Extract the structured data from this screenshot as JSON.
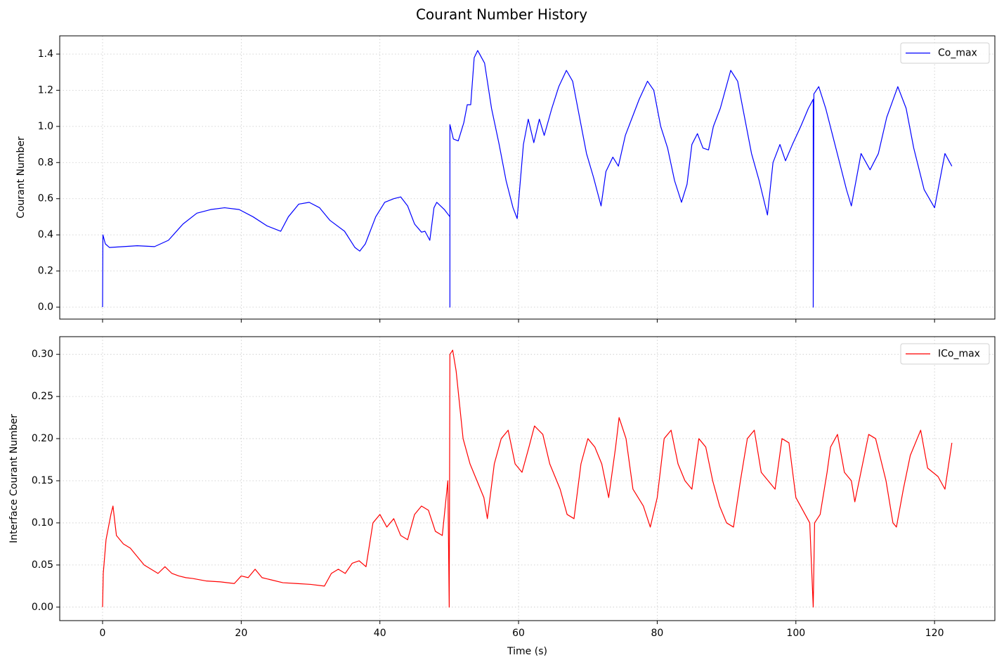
{
  "title": "Courant Number History",
  "chart_data": [
    {
      "type": "line",
      "ylabel": "Courant Number",
      "grid": true,
      "legend": "upper right",
      "xlim": [
        -6.18,
        128.7
      ],
      "ylim": [
        -0.066,
        1.501
      ],
      "xticks": [
        0,
        20,
        40,
        60,
        80,
        100,
        120
      ],
      "yticks": [
        {
          "value": 0,
          "label": "0.0"
        },
        0.2,
        0.4,
        0.6,
        0.8,
        {
          "value": 1,
          "label": "1.0"
        },
        1.2,
        1.4
      ],
      "series": [
        {
          "name": "Co_max",
          "color": "#0000ff",
          "x": [
            0,
            0.05,
            0.4,
            1,
            3,
            5,
            7.5,
            9.5,
            11.6,
            13.6,
            15.6,
            17.6,
            19.7,
            21.7,
            23.7,
            25.7,
            26.8,
            28.3,
            29.8,
            31.3,
            32.8,
            34.9,
            36.4,
            37.1,
            37.9,
            39.4,
            40.7,
            42,
            43,
            44,
            45,
            46,
            46.5,
            47.2,
            47.8,
            48.2,
            49.3,
            50.1,
            50.1,
            50.1,
            50.6,
            51.3,
            52.1,
            52.6,
            53.1,
            53.6,
            54.1,
            55.1,
            56.1,
            57.2,
            58.2,
            59.2,
            59.8,
            60.7,
            61.4,
            62.2,
            63,
            63.7,
            64.8,
            65.8,
            66.9,
            67.8,
            68.8,
            69.8,
            70.8,
            71.9,
            72.6,
            73.6,
            74.4,
            75.4,
            76.4,
            77.4,
            78.6,
            79.5,
            80.5,
            81.5,
            82.5,
            83.5,
            84.3,
            85,
            85.8,
            86.6,
            87.4,
            88.1,
            89.1,
            90.6,
            91.6,
            92.6,
            93.6,
            94.7,
            95.9,
            96.7,
            97.7,
            98.5,
            99.5,
            100.7,
            101.8,
            102.5,
            102.5,
            102.6,
            103.3,
            104.3,
            105.3,
            106.3,
            107.3,
            108,
            109.4,
            110.7,
            111.9,
            113.1,
            114.7,
            115.9,
            117,
            118.5,
            120,
            121.5,
            122.5
          ],
          "values": [
            0,
            0.4,
            0.35,
            0.33,
            0.335,
            0.34,
            0.335,
            0.37,
            0.46,
            0.52,
            0.54,
            0.55,
            0.54,
            0.5,
            0.45,
            0.42,
            0.5,
            0.57,
            0.58,
            0.55,
            0.48,
            0.42,
            0.33,
            0.31,
            0.35,
            0.5,
            0.58,
            0.6,
            0.61,
            0.56,
            0.46,
            0.415,
            0.42,
            0.37,
            0.55,
            0.58,
            0.54,
            0.5,
            0,
            1.01,
            0.93,
            0.92,
            1.02,
            1.12,
            1.12,
            1.38,
            1.42,
            1.35,
            1.1,
            0.9,
            0.7,
            0.55,
            0.49,
            0.9,
            1.04,
            0.91,
            1.04,
            0.95,
            1.1,
            1.22,
            1.31,
            1.25,
            1.05,
            0.85,
            0.72,
            0.56,
            0.75,
            0.83,
            0.78,
            0.95,
            1.05,
            1.15,
            1.25,
            1.2,
            1.0,
            0.88,
            0.7,
            0.58,
            0.68,
            0.9,
            0.96,
            0.88,
            0.87,
            1.0,
            1.1,
            1.31,
            1.25,
            1.05,
            0.85,
            0.7,
            0.51,
            0.8,
            0.9,
            0.81,
            0.9,
            1.0,
            1.1,
            1.15,
            0,
            1.18,
            1.22,
            1.1,
            0.95,
            0.8,
            0.65,
            0.56,
            0.85,
            0.76,
            0.85,
            1.05,
            1.22,
            1.1,
            0.88,
            0.65,
            0.55,
            0.85,
            0.78
          ]
        }
      ]
    },
    {
      "type": "line",
      "xlabel": "Time (s)",
      "ylabel": "Interface Courant Number",
      "grid": true,
      "legend": "upper right",
      "xlim": [
        -6.18,
        128.7
      ],
      "ylim": [
        -0.016,
        0.321
      ],
      "xticks": [
        0,
        20,
        40,
        60,
        80,
        100,
        120
      ],
      "yticks": [
        {
          "value": 0,
          "label": "0.00"
        },
        0.05,
        {
          "value": 0.1,
          "label": "0.10"
        },
        0.15,
        {
          "value": 0.2,
          "label": "0.20"
        },
        0.25,
        {
          "value": 0.3,
          "label": "0.30"
        }
      ],
      "series": [
        {
          "name": "ICo_max",
          "color": "#ff0000",
          "x": [
            0,
            0.1,
            0.5,
            1.2,
            1.5,
            2,
            3,
            4,
            5,
            6,
            7,
            8,
            9,
            10,
            11,
            12,
            13,
            15,
            17,
            19,
            20,
            21,
            22,
            23,
            24,
            26,
            28,
            30,
            32,
            33,
            34,
            35,
            36,
            37,
            38,
            39,
            40,
            41,
            42,
            43,
            44,
            45,
            46,
            47,
            48,
            49,
            49.8,
            50,
            50.1,
            50.5,
            51,
            52,
            53,
            54,
            55,
            55.5,
            56.5,
            57.5,
            58.5,
            59.5,
            60.5,
            61.5,
            62.3,
            63.5,
            64.5,
            66,
            67,
            68,
            69,
            70,
            71,
            72,
            73,
            74,
            74.5,
            75.5,
            76.5,
            78,
            79,
            80,
            81,
            82,
            83,
            84,
            85,
            86,
            87,
            88,
            89,
            90,
            91,
            92,
            93,
            94,
            95,
            96,
            97,
            98,
            99,
            100,
            101,
            102,
            102.5,
            102.7,
            103.5,
            104.5,
            105,
            106,
            107,
            108,
            108.5,
            109.5,
            110.5,
            111.5,
            113,
            114,
            114.5,
            115.5,
            116.5,
            118,
            119,
            120.5,
            121.5,
            122.5
          ],
          "values": [
            0,
            0.04,
            0.08,
            0.11,
            0.12,
            0.085,
            0.075,
            0.07,
            0.06,
            0.05,
            0.045,
            0.04,
            0.048,
            0.04,
            0.037,
            0.035,
            0.034,
            0.031,
            0.03,
            0.028,
            0.037,
            0.035,
            0.045,
            0.035,
            0.033,
            0.029,
            0.028,
            0.027,
            0.025,
            0.04,
            0.045,
            0.04,
            0.052,
            0.055,
            0.048,
            0.1,
            0.11,
            0.095,
            0.105,
            0.085,
            0.08,
            0.11,
            0.12,
            0.115,
            0.09,
            0.085,
            0.15,
            0,
            0.3,
            0.305,
            0.28,
            0.2,
            0.17,
            0.15,
            0.13,
            0.105,
            0.17,
            0.2,
            0.21,
            0.17,
            0.16,
            0.19,
            0.215,
            0.205,
            0.17,
            0.14,
            0.11,
            0.105,
            0.17,
            0.2,
            0.19,
            0.17,
            0.13,
            0.19,
            0.225,
            0.2,
            0.14,
            0.12,
            0.095,
            0.13,
            0.2,
            0.21,
            0.17,
            0.15,
            0.14,
            0.2,
            0.19,
            0.15,
            0.12,
            0.1,
            0.095,
            0.15,
            0.2,
            0.21,
            0.16,
            0.15,
            0.14,
            0.2,
            0.195,
            0.13,
            0.115,
            0.1,
            0,
            0.1,
            0.11,
            0.16,
            0.19,
            0.205,
            0.16,
            0.15,
            0.125,
            0.165,
            0.205,
            0.2,
            0.15,
            0.1,
            0.095,
            0.14,
            0.18,
            0.21,
            0.165,
            0.155,
            0.14,
            0.195
          ]
        }
      ]
    }
  ]
}
